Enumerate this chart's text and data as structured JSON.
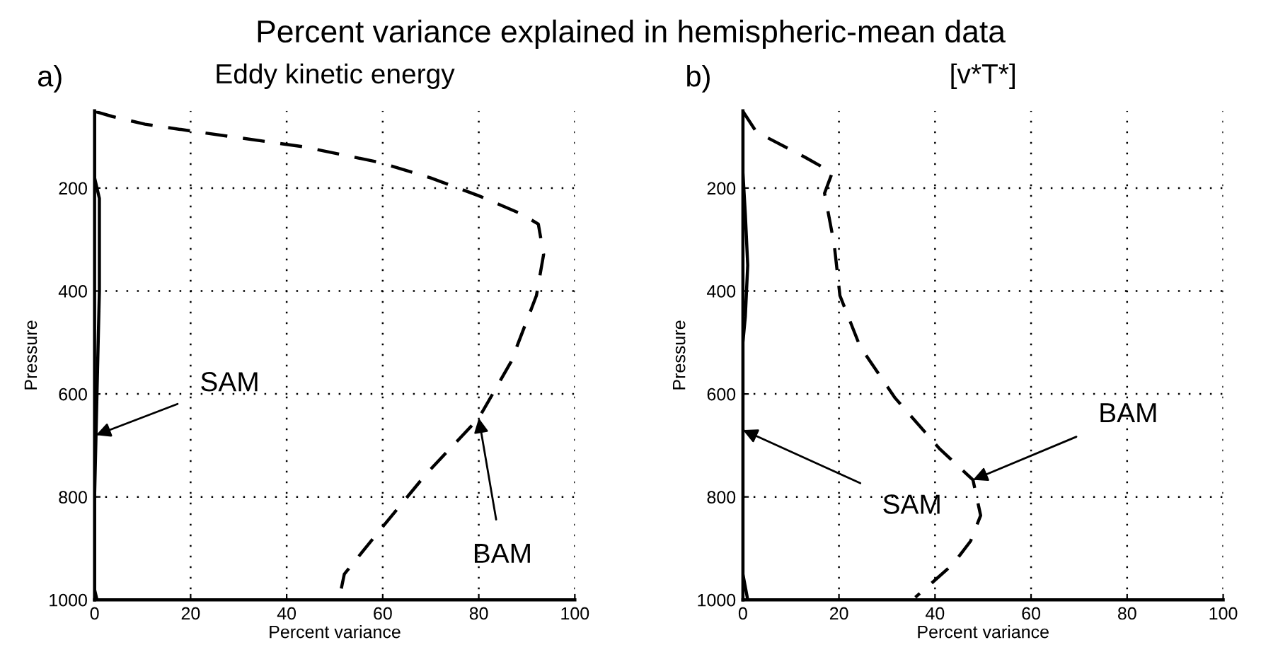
{
  "chart_data": [
    {
      "type": "line",
      "title": "Eddy kinetic energy",
      "xlabel": "Percent variance",
      "ylabel": "Pressure",
      "annotations": [
        "Percent variance explained in hemispheric-mean data",
        "a)",
        {
          "text": "SAM",
          "x": 0.3,
          "y": 680
        },
        {
          "text": "BAM",
          "x": 80,
          "y": 647
        }
      ],
      "xlim": [
        0,
        100
      ],
      "xticks": [
        0,
        20,
        40,
        60,
        80,
        100
      ],
      "ylim": [
        1000,
        50
      ],
      "yticks": [
        200,
        400,
        600,
        800,
        1000
      ],
      "grid": true,
      "legend": false,
      "series": [
        {
          "color": "#000000",
          "line_style": "solid",
          "x": [
            0,
            0,
            1,
            1,
            0.5,
            0,
            0,
            0.5
          ],
          "values": [
            50,
            180,
            220,
            400,
            600,
            800,
            980,
            1000
          ]
        },
        {
          "color": "#000000",
          "line_style": "dashed",
          "x": [
            0,
            3.7,
            10.5,
            21.5,
            43.6,
            59.3,
            69.9,
            80,
            88.8,
            92.4,
            93.5,
            92,
            86.7,
            80,
            69,
            59.3,
            52,
            51
          ],
          "values": [
            51,
            61,
            76,
            91,
            120,
            150,
            180,
            215,
            250,
            270,
            329,
            409,
            538,
            647,
            756,
            866,
            950,
            995
          ]
        }
      ]
    },
    {
      "type": "line",
      "title": "[v*T*]",
      "xlabel": "Percent variance",
      "ylabel": "Pressure",
      "annotations": [
        "b)",
        {
          "text": "SAM",
          "x": 0,
          "y": 670
        },
        {
          "text": "BAM",
          "x": 47.9,
          "y": 767
        }
      ],
      "xlim": [
        0,
        100
      ],
      "xticks": [
        0,
        20,
        40,
        60,
        80,
        100
      ],
      "ylim": [
        1000,
        50
      ],
      "yticks": [
        200,
        400,
        600,
        800,
        1000
      ],
      "grid": true,
      "legend": false,
      "series": [
        {
          "color": "#000000",
          "line_style": "solid",
          "x": [
            0,
            0,
            0.5,
            1,
            0.5,
            0,
            0,
            1
          ],
          "values": [
            50,
            170,
            250,
            350,
            450,
            500,
            950,
            1000
          ]
        },
        {
          "color": "#000000",
          "line_style": "dashed",
          "x": [
            0,
            2.8,
            12.9,
            18.6,
            17,
            19,
            20.2,
            24.4,
            31.7,
            41,
            47.9,
            49.5,
            47.4,
            43.8,
            39.6,
            35.9
          ],
          "values": [
            51,
            91,
            140,
            170,
            210,
            309,
            409,
            508,
            608,
            707,
            767,
            836,
            886,
            930,
            965,
            995
          ]
        }
      ]
    }
  ]
}
